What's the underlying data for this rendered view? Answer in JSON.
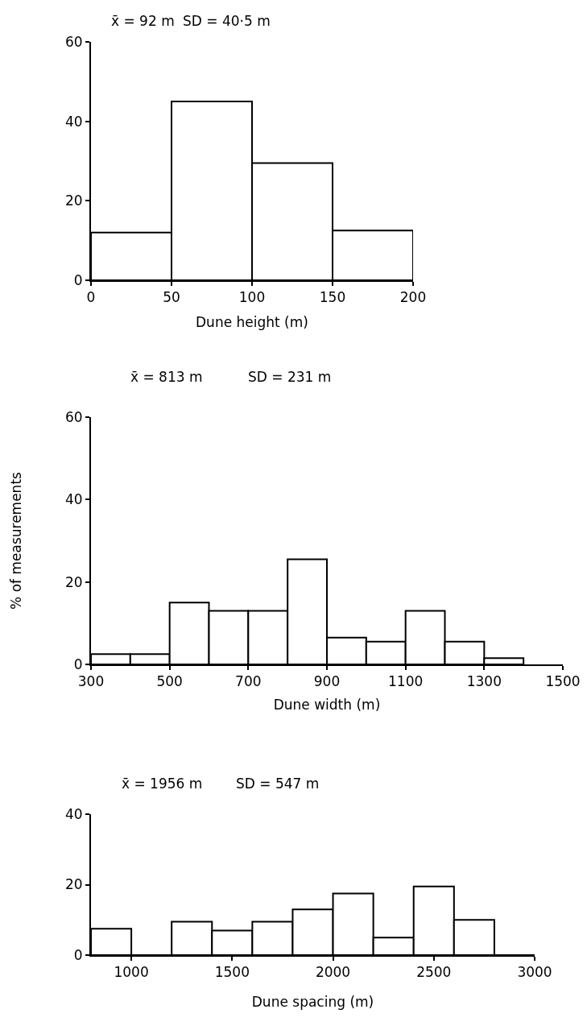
{
  "chart_data": [
    {
      "type": "histogram",
      "annotations": [
        "x̄ = 92 m",
        "SD = 40·5 m"
      ],
      "xlabel": "Dune height (m)",
      "bins": [
        0,
        50,
        100,
        150,
        200
      ],
      "values": [
        12,
        45,
        29.5,
        12.5
      ],
      "color": "#ffffff",
      "xlim": [
        0,
        200
      ],
      "xticks": [
        0,
        50,
        100,
        150,
        200
      ],
      "ylim": [
        0,
        60
      ],
      "yticks": [
        0,
        20,
        40,
        60
      ]
    },
    {
      "type": "histogram",
      "annotations": [
        "x̄ = 813 m",
        "SD = 231 m"
      ],
      "xlabel": "Dune width (m)",
      "ylabel": "% of measurements",
      "bins": [
        300,
        400,
        500,
        600,
        700,
        800,
        900,
        1000,
        1100,
        1200,
        1300,
        1400
      ],
      "values": [
        2.5,
        2.5,
        15,
        13,
        13,
        25.5,
        6.5,
        5.5,
        13,
        5.5,
        1.5
      ],
      "color": "#ffffff",
      "xlim": [
        300,
        1500
      ],
      "xticks": [
        300,
        500,
        700,
        900,
        1100,
        1300,
        1500
      ],
      "ylim": [
        0,
        60
      ],
      "yticks": [
        0,
        20,
        40,
        60
      ]
    },
    {
      "type": "histogram",
      "annotations": [
        "x̄ = 1956 m",
        "SD = 547 m"
      ],
      "xlabel": "Dune spacing (m)",
      "bins": [
        800,
        1000,
        1200,
        1400,
        1600,
        1800,
        2000,
        2200,
        2400,
        2600,
        2800,
        3000
      ],
      "values": [
        7.5,
        0,
        9.5,
        7,
        9.5,
        13,
        17.5,
        5,
        19.5,
        10,
        0
      ],
      "color": "#ffffff",
      "xlim": [
        800,
        3000
      ],
      "xticks": [
        1000,
        1500,
        2000,
        2500,
        3000
      ],
      "ylim": [
        0,
        40
      ],
      "yticks": [
        0,
        20,
        40
      ]
    }
  ]
}
